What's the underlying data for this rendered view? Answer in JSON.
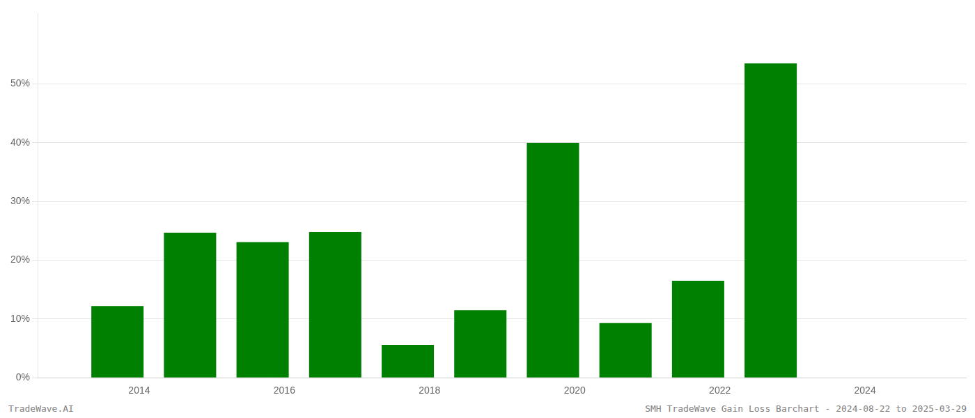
{
  "chart_data": {
    "type": "bar",
    "x": [
      2013.7,
      2014.7,
      2015.7,
      2016.7,
      2017.7,
      2018.7,
      2019.7,
      2020.7,
      2021.7,
      2022.7
    ],
    "values": [
      0.122,
      0.247,
      0.231,
      0.248,
      0.056,
      0.115,
      0.4,
      0.093,
      0.165,
      0.535
    ],
    "color": "#008000",
    "xlim": [
      2012.6,
      2025.4
    ],
    "xticks": [
      2014,
      2016,
      2018,
      2020,
      2022,
      2024
    ],
    "ylim": [
      0,
      0.62
    ],
    "yticks": [
      {
        "value": 0.0,
        "label": "0%"
      },
      {
        "value": 0.1,
        "label": "10%"
      },
      {
        "value": 0.2,
        "label": "20%"
      },
      {
        "value": 0.3,
        "label": "30%"
      },
      {
        "value": 0.4,
        "label": "40%"
      },
      {
        "value": 0.5,
        "label": "50%"
      }
    ],
    "grid": true,
    "annotations": [
      "TradeWave.AI",
      "SMH TradeWave Gain Loss Barchart - 2024-08-22 to 2025-03-29"
    ]
  }
}
